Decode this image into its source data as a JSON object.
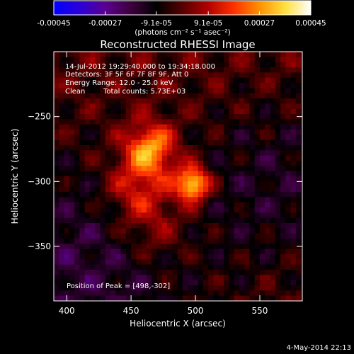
{
  "chart_data": {
    "type": "heatmap",
    "title": "Reconstructed RHESSI Image",
    "xlabel": "Heliocentric X (arcsec)",
    "ylabel": "Heliocentric Y (arcsec)",
    "xlim": [
      390,
      583
    ],
    "ylim": [
      -392,
      -200
    ],
    "x_ticks": [
      400,
      450,
      500,
      550
    ],
    "y_ticks": [
      -250,
      -300,
      -350
    ],
    "colorbar": {
      "range": [
        -0.00045,
        0.00045
      ],
      "tick_values": [
        -0.00045,
        -0.00027,
        -9.1e-05,
        9.1e-05,
        0.00027,
        0.00045
      ],
      "tick_labels": [
        "-0.00045",
        "-0.00027",
        "-9.1e-05",
        "9.1e-05",
        "0.00027",
        "0.00045"
      ],
      "unit_label": "(photons cm⁻² s⁻¹ asec⁻²)",
      "colormap": [
        "#0000ff",
        "#2a00d8",
        "#5a0090",
        "#3c003c",
        "#000000",
        "#550000",
        "#b00000",
        "#ff3000",
        "#ff9000",
        "#ffe040",
        "#ffffff"
      ]
    },
    "annotations": {
      "time": "14-Jul-2012 19:29:40.000 to 19:34:18.000",
      "detectors": "Detectors: 3F 5F 6F 7F 8F 9F, Att 0",
      "energy": "Energy Range: 12.0 - 25.0 keV",
      "method": "Clean",
      "counts": "Total counts: 5.73E+03",
      "peak": "Position of Peak = [498,-302]"
    },
    "peak": {
      "x": 498,
      "y": -302
    },
    "sources": [
      {
        "x": 498,
        "y": -302,
        "sigma": 9,
        "amp": 0.00045
      },
      {
        "x": 465,
        "y": -275,
        "sigma": 14,
        "amp": 0.00032
      },
      {
        "x": 455,
        "y": -305,
        "sigma": 18,
        "amp": 0.00018
      },
      {
        "x": 470,
        "y": -335,
        "sigma": 20,
        "amp": 0.00012
      }
    ],
    "footer_date": "4-May-2014 22:13"
  }
}
